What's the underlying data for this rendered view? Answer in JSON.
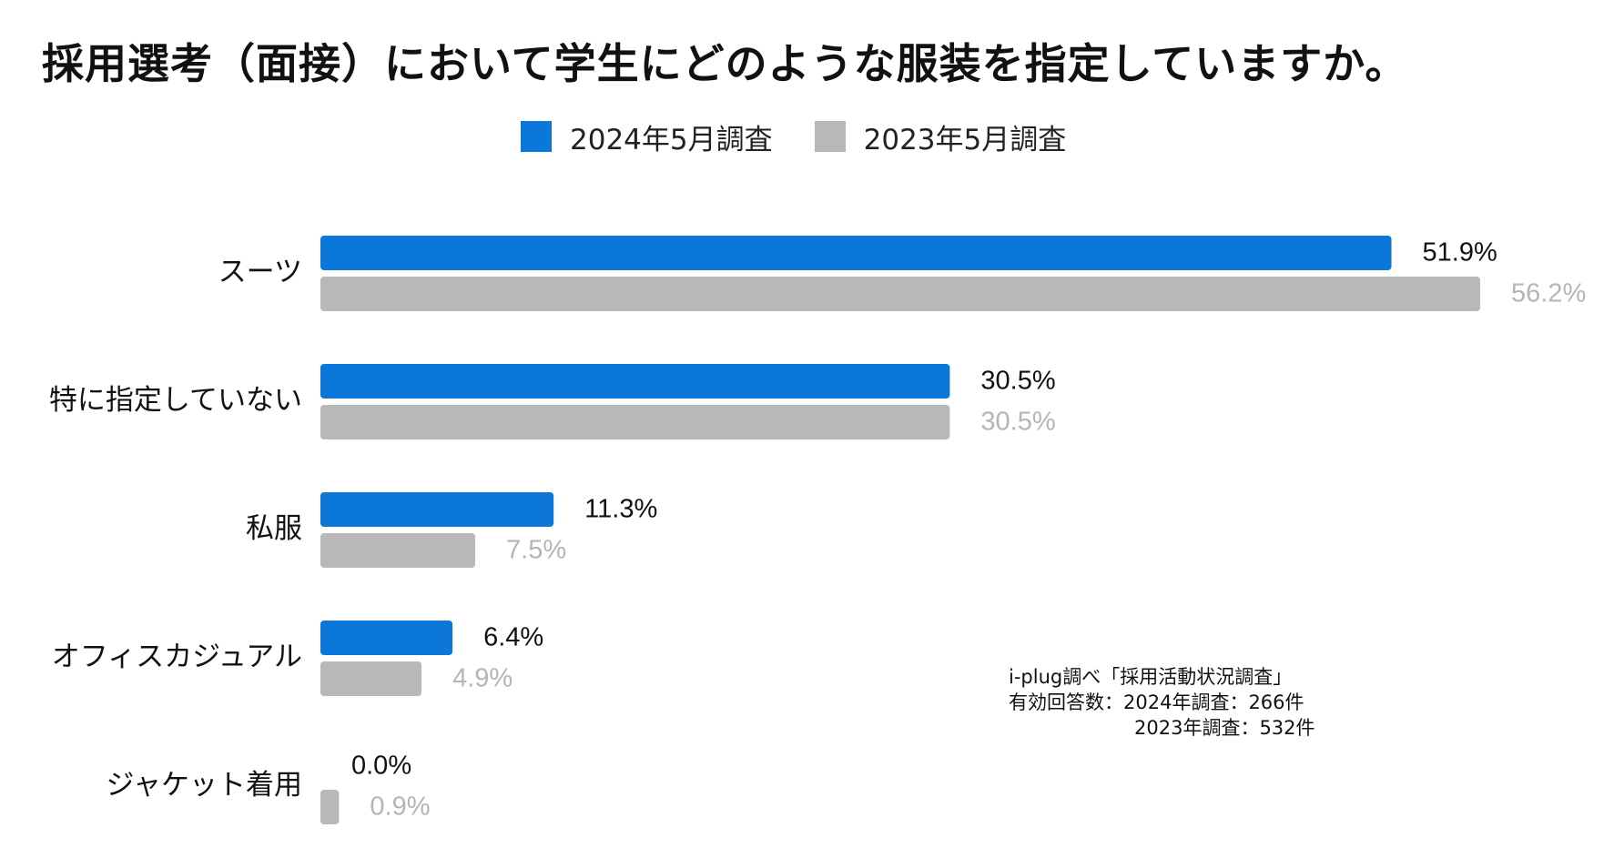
{
  "chart_data": {
    "type": "bar",
    "orientation": "horizontal",
    "title": "採用選考（面接）において学生にどのような服装を指定していますか。",
    "categories": [
      "スーツ",
      "特に指定していない",
      "私服",
      "オフィスカジュアル",
      "ジャケット着用"
    ],
    "series": [
      {
        "name": "2024年5月調査",
        "color": "#0b77d8",
        "label_color": "#111111",
        "values": [
          51.9,
          30.5,
          11.3,
          6.4,
          0.0
        ],
        "labels": [
          "51.9%",
          "30.5%",
          "11.3%",
          "6.4%",
          "0.0%"
        ]
      },
      {
        "name": "2023年5月調査",
        "color": "#b8b8b8",
        "label_color": "#b5b5b5",
        "values": [
          56.2,
          30.5,
          7.5,
          4.9,
          0.9
        ],
        "labels": [
          "56.2%",
          "30.5%",
          "7.5%",
          "4.9%",
          "0.9%"
        ]
      }
    ],
    "xlim": [
      0,
      56.2
    ],
    "legend_position": "top-center",
    "grid": false,
    "xlabel": "",
    "ylabel": ""
  },
  "note": {
    "source": "i-plug調べ「採用活動状況調査」",
    "line2": "有効回答数：2024年調査：266件",
    "line3": "2023年調査：532件"
  }
}
